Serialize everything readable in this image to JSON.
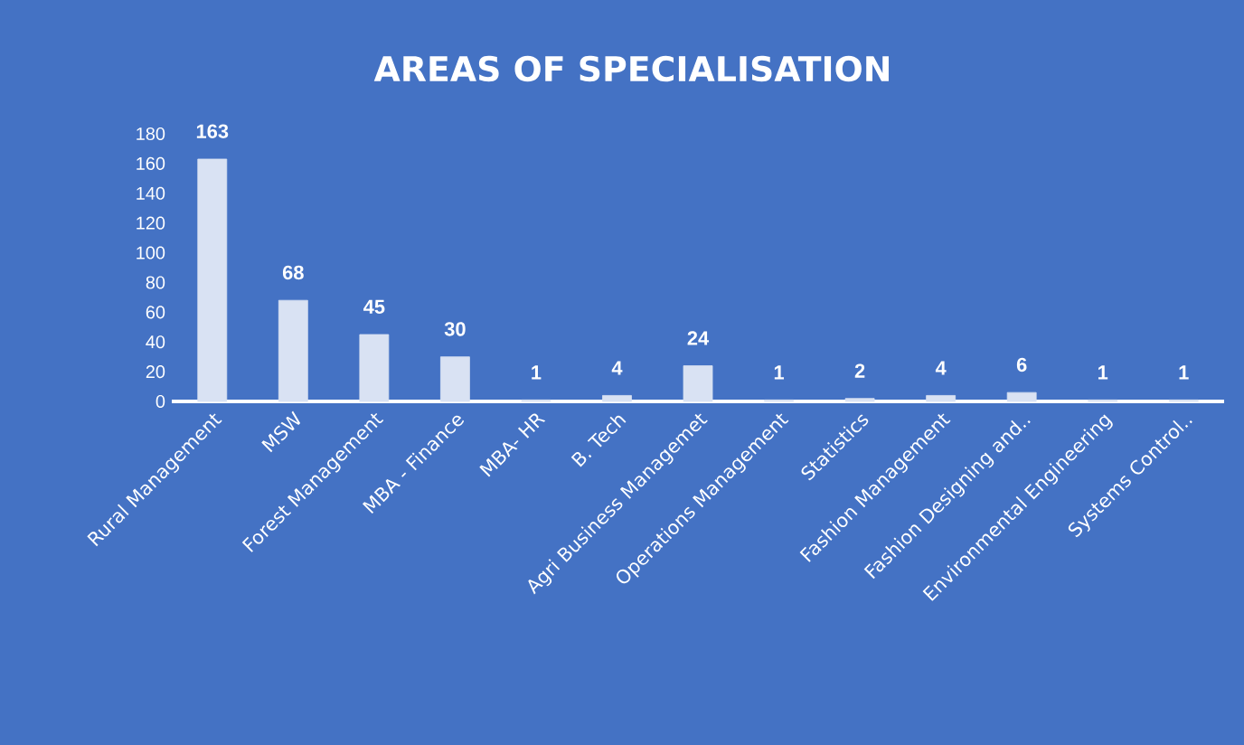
{
  "chart_data": {
    "type": "bar",
    "title": "AREAS OF SPECIALISATION",
    "categories": [
      "Rural Management",
      "MSW",
      "Forest Management",
      "MBA - Finance",
      "MBA- HR",
      "B. Tech",
      "Agri Business Managemet",
      "Operations Management",
      "Statistics",
      "Fashion Management",
      "Fashion Designing and..",
      "Environmental Engineering",
      "Systems Control.."
    ],
    "values": [
      163,
      68,
      45,
      30,
      1,
      4,
      24,
      1,
      2,
      4,
      6,
      1,
      1
    ],
    "color": "#d9e2f3",
    "ylim": [
      0,
      180
    ],
    "yticks": [
      0,
      20,
      40,
      60,
      80,
      100,
      120,
      140,
      160,
      180
    ],
    "data_labels": true,
    "grid": false
  }
}
